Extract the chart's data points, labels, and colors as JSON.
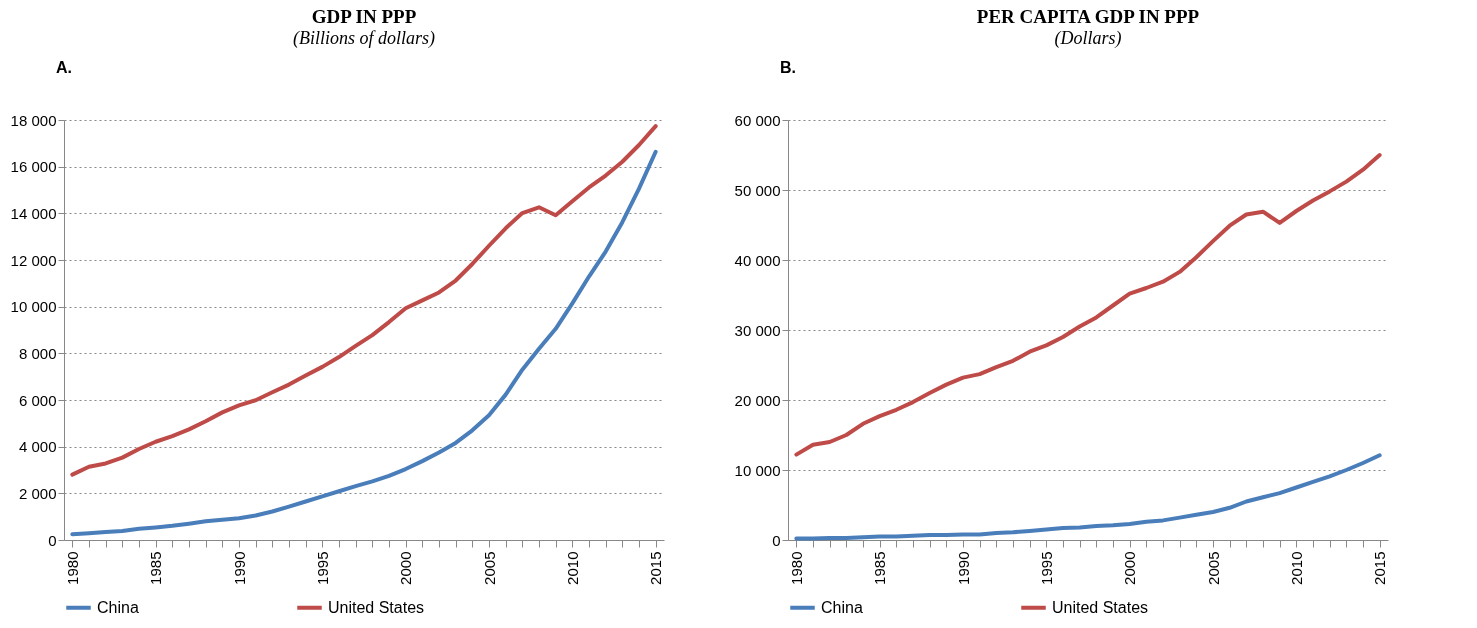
{
  "chart_data": [
    {
      "type": "line",
      "title": "GDP IN PPP",
      "subtitle": "(Billions of dollars)",
      "annotations": [
        "A."
      ],
      "x": [
        1980,
        1981,
        1982,
        1983,
        1984,
        1985,
        1986,
        1987,
        1988,
        1989,
        1990,
        1991,
        1992,
        1993,
        1994,
        1995,
        1996,
        1997,
        1998,
        1999,
        2000,
        2001,
        2002,
        2003,
        2004,
        2005,
        2006,
        2007,
        2008,
        2009,
        2010,
        2011,
        2012,
        2013,
        2014,
        2015
      ],
      "series": [
        {
          "name": "China",
          "color": "#4a7ebb",
          "values": [
            250,
            290,
            340,
            390,
            480,
            540,
            610,
            700,
            800,
            870,
            930,
            1050,
            1220,
            1430,
            1650,
            1870,
            2090,
            2310,
            2510,
            2750,
            3040,
            3380,
            3750,
            4160,
            4700,
            5350,
            6230,
            7300,
            8200,
            9050,
            10140,
            11290,
            12360,
            13620,
            15060,
            16640
          ]
        },
        {
          "name": "United States",
          "color": "#be4b48",
          "values": [
            2800,
            3140,
            3280,
            3530,
            3900,
            4210,
            4450,
            4740,
            5090,
            5470,
            5770,
            5990,
            6330,
            6660,
            7050,
            7420,
            7840,
            8320,
            8780,
            9340,
            9930,
            10270,
            10610,
            11120,
            11830,
            12610,
            13360,
            14010,
            14260,
            13920,
            14520,
            15110,
            15620,
            16210,
            16930,
            17740
          ]
        }
      ],
      "xlim": [
        1979.5,
        2015.5
      ],
      "xticks": [
        1980,
        {
          "value": 1981,
          "label": null
        },
        {
          "value": 1982,
          "label": null
        },
        {
          "value": 1983,
          "label": null
        },
        {
          "value": 1984,
          "label": null
        },
        1985,
        {
          "value": 1986,
          "label": null
        },
        {
          "value": 1987,
          "label": null
        },
        {
          "value": 1988,
          "label": null
        },
        {
          "value": 1989,
          "label": null
        },
        1990,
        {
          "value": 1991,
          "label": null
        },
        {
          "value": 1992,
          "label": null
        },
        {
          "value": 1993,
          "label": null
        },
        {
          "value": 1994,
          "label": null
        },
        1995,
        {
          "value": 1996,
          "label": null
        },
        {
          "value": 1997,
          "label": null
        },
        {
          "value": 1998,
          "label": null
        },
        {
          "value": 1999,
          "label": null
        },
        2000,
        {
          "value": 2001,
          "label": null
        },
        {
          "value": 2002,
          "label": null
        },
        {
          "value": 2003,
          "label": null
        },
        {
          "value": 2004,
          "label": null
        },
        2005,
        {
          "value": 2006,
          "label": null
        },
        {
          "value": 2007,
          "label": null
        },
        {
          "value": 2008,
          "label": null
        },
        {
          "value": 2009,
          "label": null
        },
        2010,
        {
          "value": 2011,
          "label": null
        },
        {
          "value": 2012,
          "label": null
        },
        {
          "value": 2013,
          "label": null
        },
        {
          "value": 2014,
          "label": null
        },
        2015
      ],
      "ylim": [
        0,
        18000
      ],
      "yticks": [
        0,
        {
          "value": 2000,
          "label": "2 000"
        },
        {
          "value": 4000,
          "label": "4 000"
        },
        {
          "value": 6000,
          "label": "6 000"
        },
        {
          "value": 8000,
          "label": "8 000"
        },
        {
          "value": 10000,
          "label": "10 000"
        },
        {
          "value": 12000,
          "label": "12 000"
        },
        {
          "value": 14000,
          "label": "14 000"
        },
        {
          "value": 16000,
          "label": "16 000"
        },
        {
          "value": 18000,
          "label": "18 000"
        }
      ],
      "grid": "y",
      "legend": "bottom",
      "marker": "none",
      "line_style": "solid"
    },
    {
      "type": "line",
      "title": "PER CAPITA GDP IN PPP",
      "subtitle": "(Dollars)",
      "annotations": [
        "B."
      ],
      "x": [
        1980,
        1981,
        1982,
        1983,
        1984,
        1985,
        1986,
        1987,
        1988,
        1989,
        1990,
        1991,
        1992,
        1993,
        1994,
        1995,
        1996,
        1997,
        1998,
        1999,
        2000,
        2001,
        2002,
        2003,
        2004,
        2005,
        2006,
        2007,
        2008,
        2009,
        2010,
        2011,
        2012,
        2013,
        2014,
        2015
      ],
      "series": [
        {
          "name": "China",
          "color": "#4a7ebb",
          "values": [
            200,
            200,
            300,
            300,
            400,
            500,
            500,
            600,
            700,
            700,
            800,
            800,
            1000,
            1100,
            1300,
            1500,
            1700,
            1800,
            2000,
            2100,
            2300,
            2600,
            2800,
            3200,
            3600,
            4000,
            4600,
            5500,
            6100,
            6700,
            7500,
            8300,
            9100,
            10000,
            11000,
            12100
          ]
        },
        {
          "name": "United States",
          "color": "#be4b48",
          "values": [
            12200,
            13600,
            14000,
            15000,
            16600,
            17700,
            18600,
            19700,
            21000,
            22200,
            23200,
            23700,
            24700,
            25600,
            26900,
            27800,
            29000,
            30500,
            31800,
            33500,
            35200,
            36000,
            36900,
            38300,
            40400,
            42700,
            44900,
            46500,
            46900,
            45300,
            47000,
            48500,
            49800,
            51200,
            52900,
            55000
          ]
        }
      ],
      "xlim": [
        1979.5,
        2015.5
      ],
      "xticks": [
        1980,
        {
          "value": 1981,
          "label": null
        },
        {
          "value": 1982,
          "label": null
        },
        {
          "value": 1983,
          "label": null
        },
        {
          "value": 1984,
          "label": null
        },
        1985,
        {
          "value": 1986,
          "label": null
        },
        {
          "value": 1987,
          "label": null
        },
        {
          "value": 1988,
          "label": null
        },
        {
          "value": 1989,
          "label": null
        },
        1990,
        {
          "value": 1991,
          "label": null
        },
        {
          "value": 1992,
          "label": null
        },
        {
          "value": 1993,
          "label": null
        },
        {
          "value": 1994,
          "label": null
        },
        1995,
        {
          "value": 1996,
          "label": null
        },
        {
          "value": 1997,
          "label": null
        },
        {
          "value": 1998,
          "label": null
        },
        {
          "value": 1999,
          "label": null
        },
        2000,
        {
          "value": 2001,
          "label": null
        },
        {
          "value": 2002,
          "label": null
        },
        {
          "value": 2003,
          "label": null
        },
        {
          "value": 2004,
          "label": null
        },
        2005,
        {
          "value": 2006,
          "label": null
        },
        {
          "value": 2007,
          "label": null
        },
        {
          "value": 2008,
          "label": null
        },
        {
          "value": 2009,
          "label": null
        },
        2010,
        {
          "value": 2011,
          "label": null
        },
        {
          "value": 2012,
          "label": null
        },
        {
          "value": 2013,
          "label": null
        },
        {
          "value": 2014,
          "label": null
        },
        2015
      ],
      "ylim": [
        0,
        60000
      ],
      "yticks": [
        0,
        {
          "value": 10000,
          "label": "10 000"
        },
        {
          "value": 20000,
          "label": "20 000"
        },
        {
          "value": 30000,
          "label": "30 000"
        },
        {
          "value": 40000,
          "label": "40 000"
        },
        {
          "value": 50000,
          "label": "50 000"
        },
        {
          "value": 60000,
          "label": "60 000"
        }
      ],
      "grid": "y",
      "legend": "bottom",
      "marker": "none",
      "line_style": "solid"
    }
  ]
}
